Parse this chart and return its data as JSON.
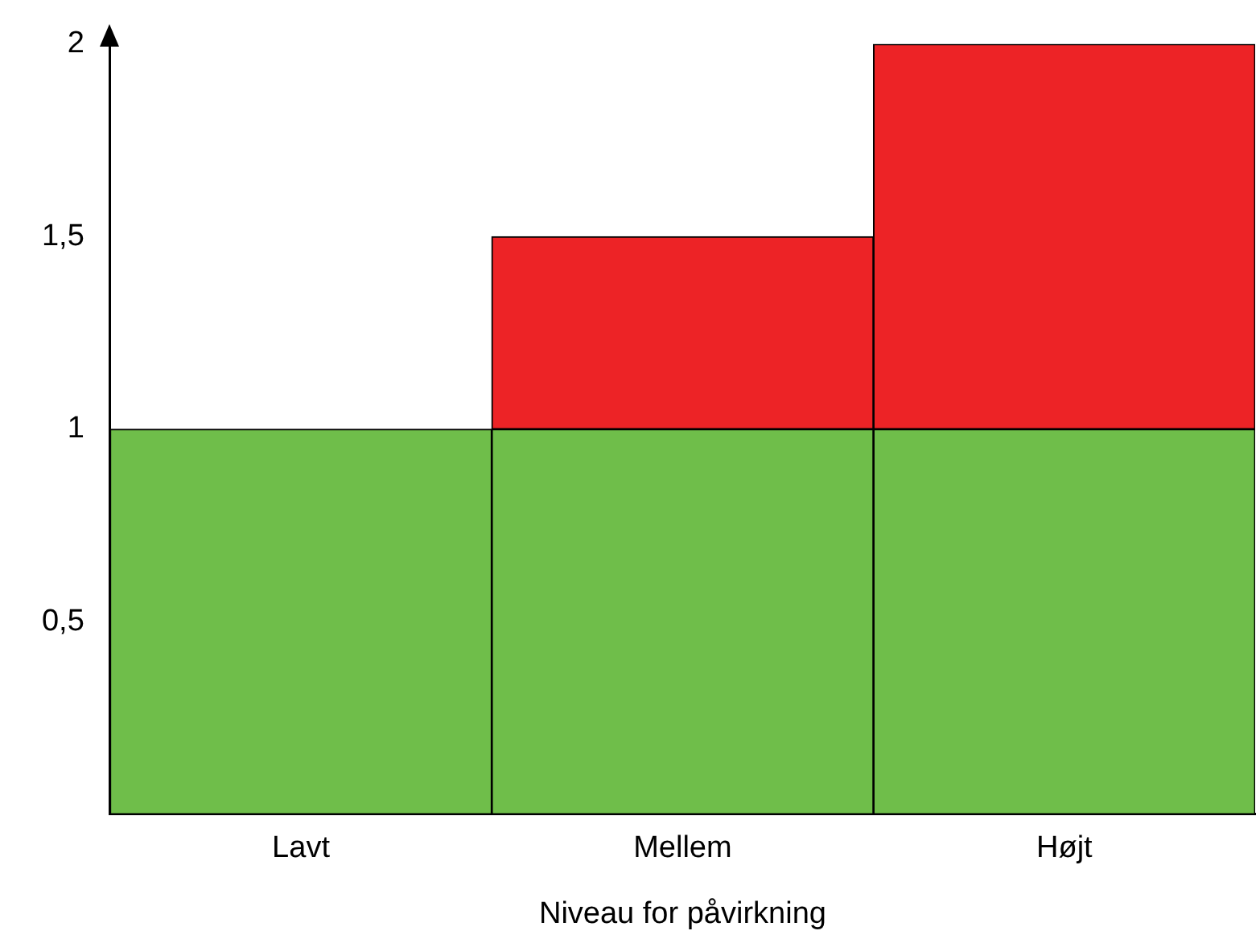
{
  "chart_data": {
    "type": "bar",
    "stacked": true,
    "xlabel": "Niveau for påvirkning",
    "categories": [
      "Lavt",
      "Mellem",
      "Højt"
    ],
    "series": [
      {
        "color": "#6fbe4a",
        "values": [
          1,
          1,
          1
        ]
      },
      {
        "color": "#ed2326",
        "values": [
          0,
          0.5,
          1
        ]
      }
    ],
    "ylim": [
      0,
      2
    ],
    "yticks": [
      {
        "value": 0.5,
        "label": "0,5"
      },
      1,
      {
        "value": 1.5,
        "label": "1,5"
      },
      2
    ],
    "grid": false,
    "legend": false
  }
}
